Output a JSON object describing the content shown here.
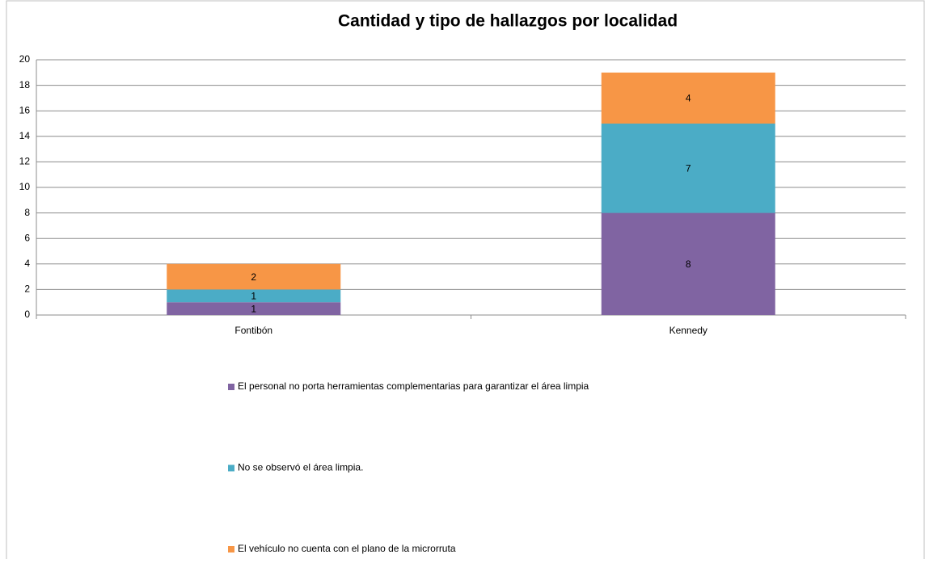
{
  "chart_data": {
    "type": "stacked_bar",
    "title": "Cantidad y tipo de hallazgos por localidad",
    "categories": [
      "Fontibón",
      "Kennedy"
    ],
    "series": [
      {
        "name": "El personal no porta herramientas complementarias para garantizar el área limpia",
        "color": "#8064a2",
        "values": [
          1,
          8
        ]
      },
      {
        "name": "No se observó el área limpia.",
        "color": "#4bacc6",
        "values": [
          1,
          7
        ]
      },
      {
        "name": "El vehículo no cuenta con el plano de la microrruta",
        "color": "#f79646",
        "values": [
          2,
          4
        ]
      }
    ],
    "ylim": [
      0,
      20
    ],
    "yticks": [
      0,
      2,
      4,
      6,
      8,
      10,
      12,
      14,
      16,
      18,
      20
    ],
    "grid": true,
    "legend": "bottom"
  }
}
